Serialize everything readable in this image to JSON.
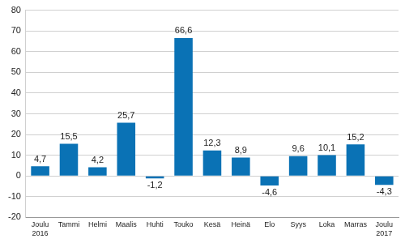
{
  "chart_data": {
    "type": "bar",
    "categories": [
      "Joulu 2016",
      "Tammi",
      "Helmi",
      "Maalis",
      "Huhti",
      "Touko",
      "Kesä",
      "Heinä",
      "Elo",
      "Syys",
      "Loka",
      "Marras",
      "Joulu 2017"
    ],
    "values": [
      4.7,
      15.5,
      4.2,
      25.7,
      -1.2,
      66.6,
      12.3,
      8.9,
      -4.6,
      9.6,
      10.1,
      15.2,
      -4.3
    ],
    "value_labels": [
      "4,7",
      "15,5",
      "4,2",
      "25,7",
      "-1,2",
      "66,6",
      "12,3",
      "8,9",
      "-4,6",
      "9,6",
      "10,1",
      "15,2",
      "-4,3"
    ],
    "data_labels": true,
    "color": "#0a72b5",
    "ylim": [
      -20,
      80
    ],
    "yticks": [
      -20,
      -10,
      0,
      10,
      20,
      30,
      40,
      50,
      60,
      70,
      80
    ],
    "grid": true
  }
}
